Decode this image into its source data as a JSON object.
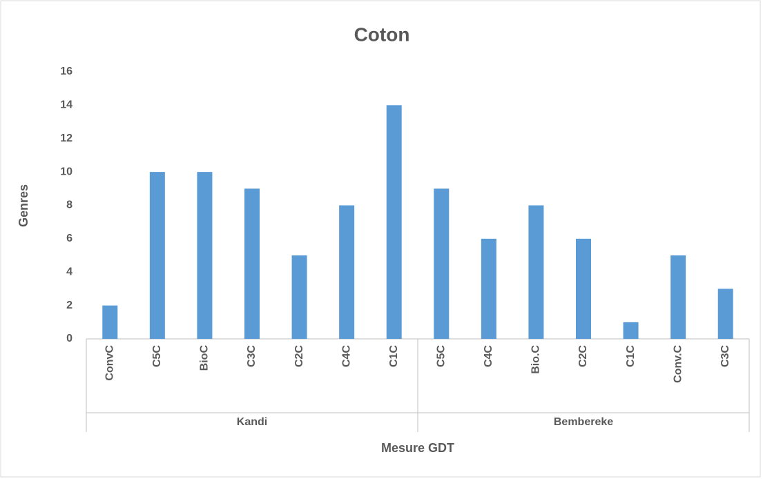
{
  "chart_data": {
    "type": "bar",
    "title": "Coton",
    "x_label": "Mesure GDT",
    "y_label": "Genres",
    "color": "#5b9bd5",
    "groups": [
      {
        "name": "Kandi",
        "categories": [
          "ConvC",
          "C5C",
          "BioC",
          "C3C",
          "C2C",
          "C4C",
          "C1C"
        ],
        "values": [
          2,
          10,
          10,
          9,
          5,
          8,
          14
        ]
      },
      {
        "name": "Bembereke",
        "categories": [
          "C5C",
          "C4C",
          "Bio.C",
          "C2C",
          "C1C",
          "Conv.C",
          "C3C"
        ],
        "values": [
          9,
          6,
          8,
          6,
          1,
          5,
          3
        ]
      }
    ],
    "ylim": [
      0,
      16
    ],
    "yticks": [
      0,
      2,
      4,
      6,
      8,
      10,
      12,
      14,
      16
    ],
    "grid": false
  }
}
